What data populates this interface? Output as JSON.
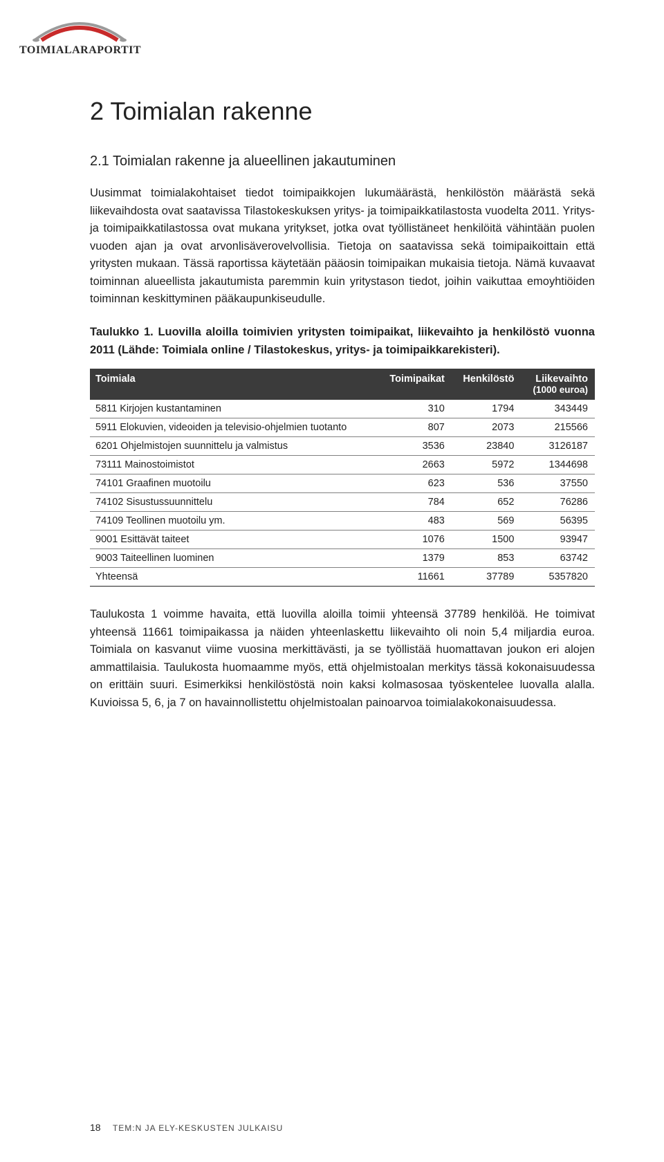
{
  "logo": {
    "text": "TOIMIALARAPORTIT",
    "arc_red": "#c82a2a",
    "arc_grey": "#9a9a9a"
  },
  "h1": "2 Toimialan rakenne",
  "h2": "2.1 Toimialan rakenne ja alueellinen jakautuminen",
  "para1": "Uusimmat toimialakohtaiset tiedot toimipaikkojen lukumäärästä, henkilöstön määrästä sekä liikevaihdosta ovat saatavissa Tilastokeskuksen yritys- ja toimipaikkatilastosta vuodelta 2011. Yritys- ja toimipaikkatilastossa ovat mukana yritykset, jotka ovat työllistäneet henkilöitä vähintään puolen vuoden ajan ja ovat arvonlisäverovelvollisia. Tietoja on saatavissa sekä toimipaikoittain että yritysten mukaan. Tässä raportissa käytetään pääosin toimipaikan mukaisia tietoja. Nämä kuvaavat toiminnan alueellista jakautumista paremmin kuin yritystason tiedot, joihin vaikuttaa emoyhtiöiden toiminnan keskittyminen pääkaupunkiseudulle.",
  "caption_bold1": "Taulukko 1.",
  "caption_bold2": " Luovilla aloilla toimivien yritysten toimipaikat, liikevaihto ja henkilöstö vuonna 2011 (Lähde: Toimiala online / Tilastokeskus, yritys- ja toimipaikkarekisteri).",
  "table": {
    "header_bg": "#3b3b3b",
    "header_fg": "#ffffff",
    "border_color": "#808080",
    "columns": [
      "Toimiala",
      "Toimipaikat",
      "Henkilöstö",
      "Liikevaihto"
    ],
    "col4_sub": "(1000 euroa)",
    "rows": [
      [
        "5811 Kirjojen kustantaminen",
        "310",
        "1794",
        "343449"
      ],
      [
        "5911 Elokuvien, videoiden ja televisio-ohjelmien tuotanto",
        "807",
        "2073",
        "215566"
      ],
      [
        "6201 Ohjelmistojen suunnittelu ja valmistus",
        "3536",
        "23840",
        "3126187"
      ],
      [
        "73111 Mainostoimistot",
        "2663",
        "5972",
        "1344698"
      ],
      [
        "74101 Graafinen muotoilu",
        "623",
        "536",
        "37550"
      ],
      [
        "74102 Sisustussuunnittelu",
        "784",
        "652",
        "76286"
      ],
      [
        "74109 Teollinen muotoilu ym.",
        "483",
        "569",
        "56395"
      ],
      [
        "9001 Esittävät taiteet",
        "1076",
        "1500",
        "93947"
      ],
      [
        "9003 Taiteellinen luominen",
        "1379",
        "853",
        "63742"
      ],
      [
        "Yhteensä",
        "11661",
        "37789",
        "5357820"
      ]
    ]
  },
  "para2": "Taulukosta 1 voimme havaita, että luovilla aloilla toimii yhteensä 37789 henkilöä. He toimivat yhteensä 11661 toimipaikassa ja näiden yhteenlaskettu liikevaihto oli noin 5,4 miljardia euroa. Toimiala on kasvanut viime vuosina merkittävästi, ja se työllistää huomattavan joukon eri alojen ammattilaisia. Taulukosta huomaamme myös, että ohjelmistoalan merkitys tässä kokonaisuudessa on erittäin suuri. Esimerkiksi henkilöstöstä noin kaksi kolmasosaa työskentelee luovalla alalla. Kuvioissa 5, 6, ja 7 on havainnollistettu ohjelmistoalan painoarvoa toimialakokonaisuudessa.",
  "footer": {
    "page": "18",
    "text": "TEM:N JA ELY-KESKUSTEN JULKAISU"
  }
}
